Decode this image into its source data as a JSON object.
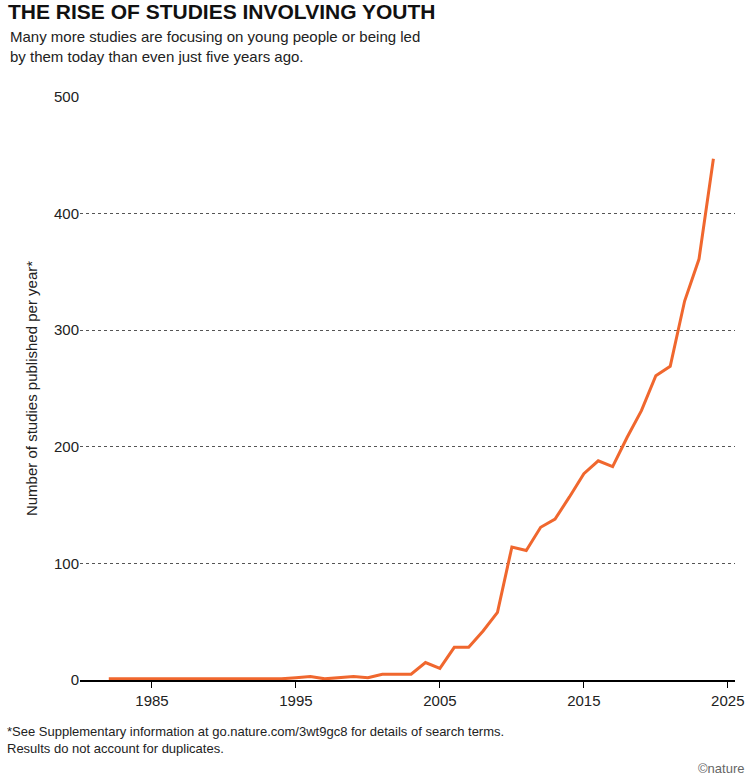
{
  "chart_data": {
    "type": "line",
    "title": "THE RISE OF STUDIES INVOLVING YOUTH",
    "subtitle": [
      "Many more studies are focusing on young people or being led",
      "by them today than even just five years ago."
    ],
    "y_label": "Number of studies published per year*",
    "note": [
      "*See Supplementary information at go.nature.com/3wt9gc8 for details of search terms.",
      "Results do not account for duplicates."
    ],
    "source": "©nature",
    "x": [
      1982,
      1983,
      1984,
      1985,
      1986,
      1987,
      1988,
      1989,
      1990,
      1991,
      1992,
      1993,
      1994,
      1995,
      1996,
      1997,
      1998,
      1999,
      2000,
      2001,
      2002,
      2003,
      2004,
      2005,
      2006,
      2007,
      2008,
      2009,
      2010,
      2011,
      2012,
      2013,
      2014,
      2015,
      2016,
      2017,
      2018,
      2019,
      2020,
      2021,
      2022,
      2023,
      2024
    ],
    "values": [
      1,
      1,
      1,
      1,
      1,
      1,
      1,
      1,
      1,
      1,
      1,
      1,
      1,
      2,
      3,
      1,
      2,
      3,
      2,
      5,
      5,
      5,
      15,
      10,
      28,
      28,
      42,
      58,
      114,
      111,
      131,
      138,
      157,
      177,
      188,
      183,
      208,
      231,
      261,
      269,
      325,
      361,
      447
    ],
    "color": "#f0672e",
    "xlim": [
      1980,
      2025.5
    ],
    "ylim": [
      0,
      500
    ],
    "xticks": [
      1985,
      1995,
      2005,
      2015,
      2025
    ],
    "yticks": [
      0,
      100,
      200,
      300,
      400,
      500
    ],
    "grid": true
  }
}
